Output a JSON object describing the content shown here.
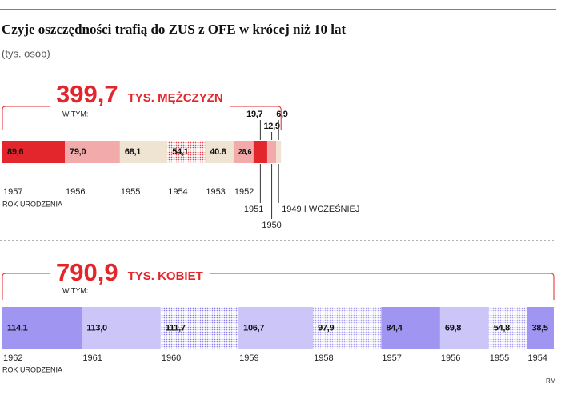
{
  "title": "Czyje oszczędności trafią do ZUS z OFE w krócej niż 10 lat",
  "subtitle": "(tys. osób)",
  "credit": "RM",
  "chart_data": [
    {
      "type": "stacked-bar",
      "total": 399.7,
      "total_label": "399,7",
      "total_caption": "TYS. MĘŻCZYZN",
      "breakdown_label": "W TYM:",
      "axis_label": "ROK URODZENIA",
      "accent": "#e3262b",
      "categories": [
        "1957",
        "1956",
        "1955",
        "1954",
        "1953",
        "1952",
        "1951",
        "1950",
        "1949 I WCZEŚNIEJ"
      ],
      "values": [
        89.6,
        79.0,
        68.1,
        54.1,
        40.8,
        28.6,
        19.7,
        12.9,
        6.9
      ],
      "value_labels": [
        "89,6",
        "79,0",
        "68,1",
        "54,1",
        "40.8",
        "28,6",
        "19,7",
        "12,9",
        "6,9"
      ],
      "colors": [
        "#e3262b",
        "#f2aaaa",
        "#efe3d1",
        "#e8434a",
        "#efe3d1",
        "#f2aaaa",
        "#e3262b",
        "#f2aaaa",
        "#efe3d1"
      ],
      "dotted": [
        false,
        false,
        false,
        true,
        false,
        false,
        false,
        false,
        false
      ]
    },
    {
      "type": "stacked-bar",
      "total": 790.9,
      "total_label": "790,9",
      "total_caption": "TYS. KOBIET",
      "breakdown_label": "W TYM:",
      "axis_label": "ROK URODZENIA",
      "accent": "#e3262b",
      "categories": [
        "1962",
        "1961",
        "1960",
        "1959",
        "1958",
        "1957",
        "1956",
        "1955",
        "1954"
      ],
      "values": [
        114.1,
        113.0,
        111.7,
        106.7,
        97.9,
        84.4,
        69.8,
        54.8,
        38.5
      ],
      "value_labels": [
        "114,1",
        "113,0",
        "111,7",
        "106,7",
        "97,9",
        "84,4",
        "69,8",
        "54,8",
        "38,5"
      ],
      "colors": [
        "#a096f2",
        "#cbc5f8",
        "#8b80ea",
        "#cbc5f8",
        "#a89ff0",
        "#a096f2",
        "#cbc5f8",
        "#a89ff0",
        "#a096f2"
      ],
      "dotted": [
        false,
        false,
        true,
        false,
        true,
        false,
        false,
        true,
        false
      ]
    }
  ]
}
